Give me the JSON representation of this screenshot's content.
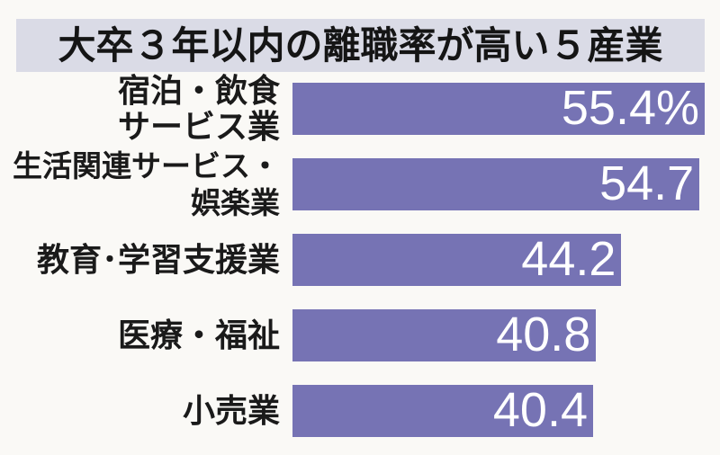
{
  "title": "大卒３年以内の離職率が高い５産業",
  "chart_data": {
    "type": "bar",
    "orientation": "horizontal",
    "title": "大卒３年以内の離職率が高い５産業",
    "unit": "%",
    "value_axis_hidden": true,
    "xlim": [
      0,
      55.4
    ],
    "max_value_for_scale": 55.4,
    "categories": [
      "宿泊・飲食サービス業",
      "生活関連サービス・娯楽業",
      "教育･学習支援業",
      "医療・福祉",
      "小売業"
    ],
    "values": [
      55.4,
      54.7,
      44.2,
      40.8,
      40.4
    ],
    "rows": [
      {
        "label": "宿泊・飲食\nサービス業",
        "value": 55.4,
        "value_label": "55.4%"
      },
      {
        "label": "生活関連サービス・\n娯楽業",
        "value": 54.7,
        "value_label": "54.7"
      },
      {
        "label": "教育･学習支援業",
        "value": 44.2,
        "value_label": "44.2"
      },
      {
        "label": "医療・福祉",
        "value": 40.8,
        "value_label": "40.8"
      },
      {
        "label": "小売業",
        "value": 40.4,
        "value_label": "40.4"
      }
    ],
    "colors": {
      "bar": "#7673b4",
      "title_background": "#dadbe6",
      "title_text": "#151515",
      "label_text": "#1a1a1a",
      "value_text": "#ffffff",
      "page_background": "#faf9f6"
    },
    "legend": null,
    "grid": false
  }
}
